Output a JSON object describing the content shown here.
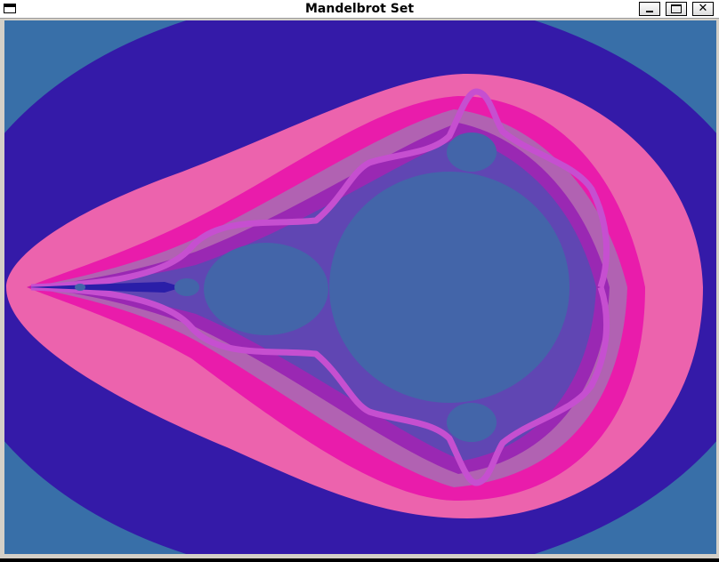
{
  "window": {
    "title": "Mandelbrot Set",
    "buttons": {
      "minimize": "_",
      "maximize": "□",
      "close": "✕"
    }
  },
  "palette": {
    "outer": "#386fa8",
    "band1": "#341aa8",
    "band2": "#ec63ad",
    "band3": "#e91cab",
    "band4": "#b162b2",
    "band5": "#9a28b3",
    "band6": "#6046b3",
    "set": "#4365a9",
    "boundary": "#2a1ea8",
    "filament": "#c64fd0"
  },
  "icons": [
    "system-menu-icon",
    "minimize-icon",
    "maximize-icon",
    "close-icon"
  ]
}
